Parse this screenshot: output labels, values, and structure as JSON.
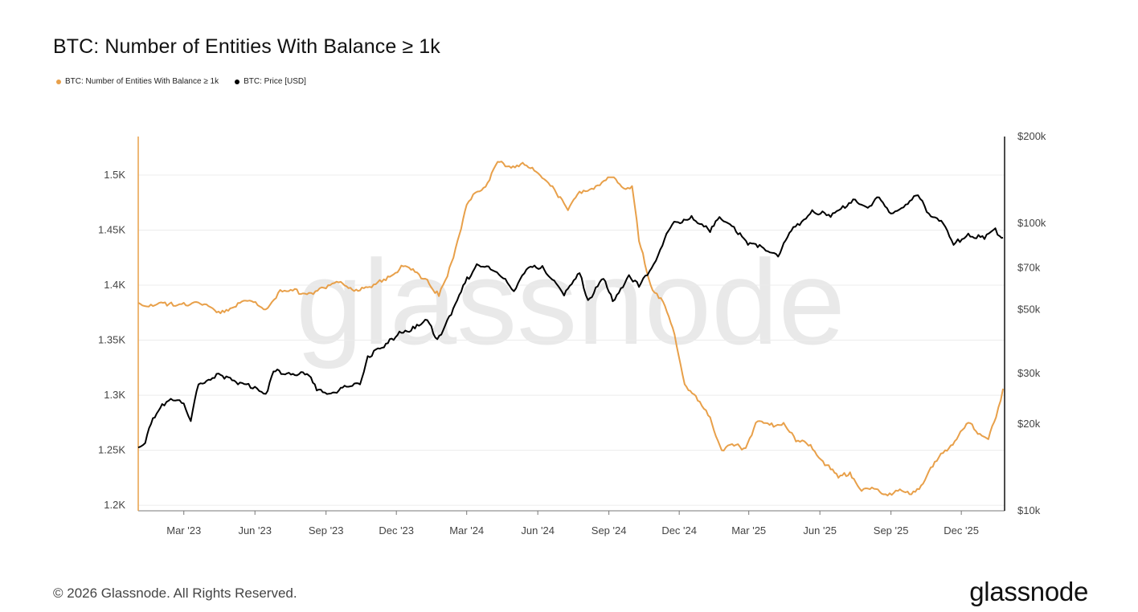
{
  "chart_data": {
    "type": "line",
    "title": "BTC: Number of Entities With Balance ≥ 1k",
    "series": [
      {
        "name": "BTC: Number of Entities With Balance ≥ 1k",
        "color": "#E8A04A",
        "axis": "left",
        "points": [
          [
            "2023-01-01",
            1384
          ],
          [
            "2023-01-20",
            1381
          ],
          [
            "2023-02-10",
            1383
          ],
          [
            "2023-03-01",
            1384
          ],
          [
            "2023-03-25",
            1382
          ],
          [
            "2023-04-15",
            1376
          ],
          [
            "2023-05-05",
            1380
          ],
          [
            "2023-05-25",
            1386
          ],
          [
            "2023-06-15",
            1378
          ],
          [
            "2023-07-01",
            1393
          ],
          [
            "2023-07-20",
            1395
          ],
          [
            "2023-08-10",
            1393
          ],
          [
            "2023-09-01",
            1397
          ],
          [
            "2023-09-20",
            1403
          ],
          [
            "2023-10-10",
            1396
          ],
          [
            "2023-10-30",
            1398
          ],
          [
            "2023-11-20",
            1408
          ],
          [
            "2023-12-10",
            1417
          ],
          [
            "2023-12-25",
            1412
          ],
          [
            "2024-01-10",
            1405
          ],
          [
            "2024-01-25",
            1390
          ],
          [
            "2024-02-05",
            1408
          ],
          [
            "2024-02-18",
            1440
          ],
          [
            "2024-03-01",
            1473
          ],
          [
            "2024-03-15",
            1485
          ],
          [
            "2024-03-28",
            1493
          ],
          [
            "2024-04-10",
            1512
          ],
          [
            "2024-04-25",
            1508
          ],
          [
            "2024-05-10",
            1510
          ],
          [
            "2024-05-30",
            1503
          ],
          [
            "2024-06-20",
            1490
          ],
          [
            "2024-07-10",
            1468
          ],
          [
            "2024-07-25",
            1485
          ],
          [
            "2024-08-15",
            1490
          ],
          [
            "2024-09-05",
            1498
          ],
          [
            "2024-09-20",
            1488
          ],
          [
            "2024-10-01",
            1490
          ],
          [
            "2024-10-10",
            1440
          ],
          [
            "2024-10-25",
            1400
          ],
          [
            "2024-11-10",
            1385
          ],
          [
            "2024-11-25",
            1355
          ],
          [
            "2024-12-08",
            1310
          ],
          [
            "2024-12-25",
            1295
          ],
          [
            "2025-01-10",
            1280
          ],
          [
            "2025-01-25",
            1250
          ],
          [
            "2025-02-10",
            1254
          ],
          [
            "2025-02-25",
            1252
          ],
          [
            "2025-03-10",
            1275
          ],
          [
            "2025-03-28",
            1273
          ],
          [
            "2025-04-15",
            1275
          ],
          [
            "2025-05-01",
            1258
          ],
          [
            "2025-05-20",
            1255
          ],
          [
            "2025-06-05",
            1240
          ],
          [
            "2025-06-25",
            1225
          ],
          [
            "2025-07-10",
            1230
          ],
          [
            "2025-07-25",
            1213
          ],
          [
            "2025-08-10",
            1215
          ],
          [
            "2025-08-25",
            1210
          ],
          [
            "2025-09-10",
            1213
          ],
          [
            "2025-09-25",
            1210
          ],
          [
            "2025-10-10",
            1218
          ],
          [
            "2025-10-25",
            1235
          ],
          [
            "2025-11-10",
            1250
          ],
          [
            "2025-11-25",
            1260
          ],
          [
            "2025-12-10",
            1275
          ],
          [
            "2025-12-25",
            1265
          ],
          [
            "2026-01-05",
            1260
          ],
          [
            "2026-01-15",
            1280
          ],
          [
            "2026-01-24",
            1306
          ]
        ]
      },
      {
        "name": "BTC: Price [USD]",
        "color": "#000000",
        "axis": "right",
        "points": [
          [
            "2023-01-01",
            16600
          ],
          [
            "2023-01-10",
            17200
          ],
          [
            "2023-01-20",
            21000
          ],
          [
            "2023-02-01",
            23500
          ],
          [
            "2023-02-15",
            24200
          ],
          [
            "2023-03-01",
            23600
          ],
          [
            "2023-03-10",
            20500
          ],
          [
            "2023-03-20",
            27500
          ],
          [
            "2023-04-15",
            30000
          ],
          [
            "2023-05-10",
            27500
          ],
          [
            "2023-06-01",
            27000
          ],
          [
            "2023-06-15",
            25500
          ],
          [
            "2023-06-25",
            30500
          ],
          [
            "2023-07-15",
            30200
          ],
          [
            "2023-08-10",
            29500
          ],
          [
            "2023-08-20",
            26200
          ],
          [
            "2023-09-10",
            25800
          ],
          [
            "2023-09-30",
            27000
          ],
          [
            "2023-10-15",
            27500
          ],
          [
            "2023-10-25",
            34500
          ],
          [
            "2023-11-15",
            37000
          ],
          [
            "2023-12-05",
            42000
          ],
          [
            "2023-12-25",
            43000
          ],
          [
            "2024-01-10",
            46000
          ],
          [
            "2024-01-23",
            39500
          ],
          [
            "2024-02-10",
            48000
          ],
          [
            "2024-02-28",
            62000
          ],
          [
            "2024-03-14",
            72000
          ],
          [
            "2024-04-01",
            69000
          ],
          [
            "2024-04-20",
            64000
          ],
          [
            "2024-05-01",
            58000
          ],
          [
            "2024-05-20",
            70000
          ],
          [
            "2024-06-07",
            71000
          ],
          [
            "2024-07-05",
            56000
          ],
          [
            "2024-07-25",
            67000
          ],
          [
            "2024-08-05",
            54000
          ],
          [
            "2024-08-25",
            64000
          ],
          [
            "2024-09-06",
            53500
          ],
          [
            "2024-09-27",
            66000
          ],
          [
            "2024-10-10",
            60000
          ],
          [
            "2024-10-29",
            72000
          ],
          [
            "2024-11-12",
            88000
          ],
          [
            "2024-11-22",
            99000
          ],
          [
            "2024-12-17",
            106000
          ],
          [
            "2025-01-10",
            93000
          ],
          [
            "2025-01-22",
            105000
          ],
          [
            "2025-02-10",
            97000
          ],
          [
            "2025-02-28",
            84000
          ],
          [
            "2025-03-15",
            84000
          ],
          [
            "2025-04-08",
            76500
          ],
          [
            "2025-04-25",
            94000
          ],
          [
            "2025-05-22",
            111000
          ],
          [
            "2025-06-15",
            105000
          ],
          [
            "2025-07-14",
            121000
          ],
          [
            "2025-08-02",
            113000
          ],
          [
            "2025-08-14",
            123000
          ],
          [
            "2025-09-01",
            108000
          ],
          [
            "2025-09-20",
            116000
          ],
          [
            "2025-10-06",
            125000
          ],
          [
            "2025-10-20",
            108000
          ],
          [
            "2025-11-05",
            102000
          ],
          [
            "2025-11-21",
            84000
          ],
          [
            "2025-12-10",
            92000
          ],
          [
            "2025-12-31",
            88000
          ],
          [
            "2026-01-14",
            96000
          ],
          [
            "2026-01-20",
            90000
          ],
          [
            "2026-01-24",
            89000
          ]
        ]
      }
    ],
    "x_ticks": [
      "Mar '23",
      "Jun '23",
      "Sep '23",
      "Dec '23",
      "Mar '24",
      "Jun '24",
      "Sep '24",
      "Dec '24",
      "Mar '25",
      "Jun '25",
      "Sep '25",
      "Dec '25"
    ],
    "left_ticks": [
      "1.2K",
      "1.25K",
      "1.3K",
      "1.35K",
      "1.4K",
      "1.45K",
      "1.5K"
    ],
    "right_ticks": [
      "$10k",
      "$20k",
      "$30k",
      "$50k",
      "$70k",
      "$100k",
      "$200k"
    ],
    "left_ylim": [
      1195,
      1535
    ],
    "right_ylim": [
      10000,
      200000
    ],
    "right_scale": "log",
    "x_range": [
      "2023-01-01",
      "2026-01-26"
    ],
    "grid": "horizontal",
    "legend_position": "top-left"
  },
  "legend": {
    "items": [
      {
        "label": "BTC: Number of Entities With Balance ≥ 1k",
        "color": "#E8A04A"
      },
      {
        "label": "BTC: Price [USD]",
        "color": "#000000"
      }
    ]
  },
  "watermark": "glassnode",
  "footer": {
    "copyright": "© 2026 Glassnode. All Rights Reserved."
  },
  "brand": {
    "logo_text": "glassnode"
  }
}
